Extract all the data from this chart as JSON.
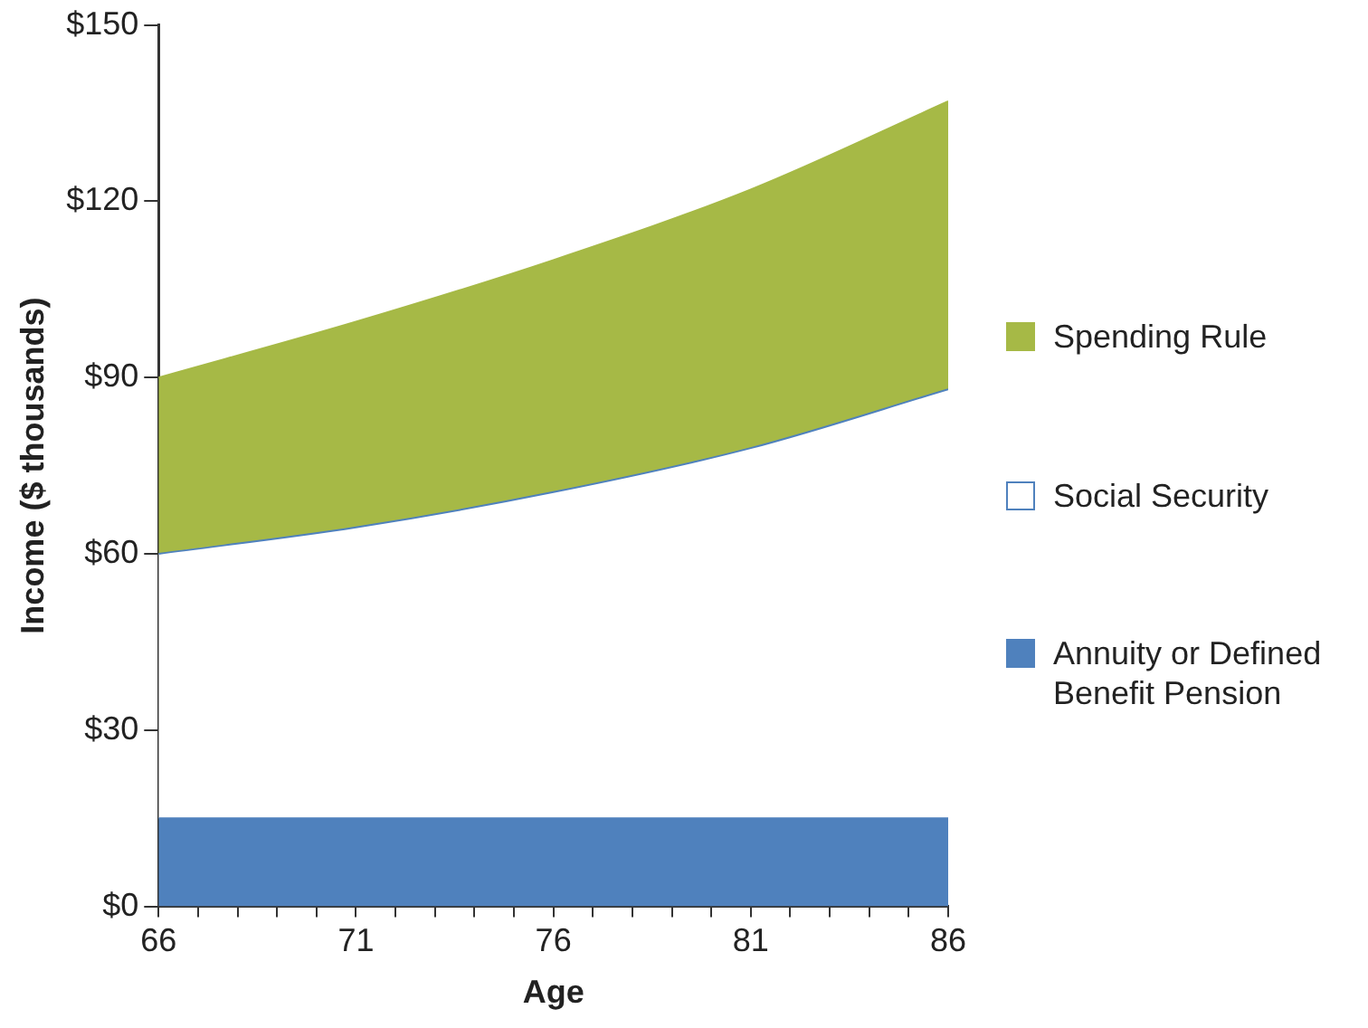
{
  "chart_data": {
    "type": "area",
    "xlabel": "Age",
    "ylabel": "Income ($ thousands)",
    "stacked": true,
    "legend": "right",
    "grid": false,
    "marker": "none",
    "x": [
      66,
      71,
      76,
      81,
      86
    ],
    "series": [
      {
        "name": "Annuity or Defined Benefit Pension",
        "color": "#4f81bd",
        "values": [
          15,
          15,
          15,
          15,
          15
        ]
      },
      {
        "name": "Social Security",
        "color": "#ffffff",
        "values": [
          45,
          49.5,
          55.5,
          63,
          73
        ]
      },
      {
        "name": "Spending Rule",
        "color": "#a6b946",
        "values": [
          30,
          35,
          39.5,
          44,
          49
        ]
      }
    ],
    "xlim": [
      66,
      86
    ],
    "xticks": [
      66,
      {
        "value": 67,
        "label": null
      },
      {
        "value": 68,
        "label": null
      },
      {
        "value": 69,
        "label": null
      },
      {
        "value": 70,
        "label": null
      },
      71,
      {
        "value": 72,
        "label": null
      },
      {
        "value": 73,
        "label": null
      },
      {
        "value": 74,
        "label": null
      },
      {
        "value": 75,
        "label": null
      },
      76,
      {
        "value": 77,
        "label": null
      },
      {
        "value": 78,
        "label": null
      },
      {
        "value": 79,
        "label": null
      },
      {
        "value": 80,
        "label": null
      },
      81,
      {
        "value": 82,
        "label": null
      },
      {
        "value": 83,
        "label": null
      },
      {
        "value": 84,
        "label": null
      },
      {
        "value": 85,
        "label": null
      },
      86
    ],
    "ylim": [
      0,
      150
    ],
    "yticks": [
      {
        "value": 0,
        "label": "$0"
      },
      {
        "value": 30,
        "label": "$30"
      },
      {
        "value": 60,
        "label": "$60"
      },
      {
        "value": 90,
        "label": "$90"
      },
      {
        "value": 120,
        "label": "$120"
      },
      {
        "value": 150,
        "label": "$150"
      }
    ]
  }
}
